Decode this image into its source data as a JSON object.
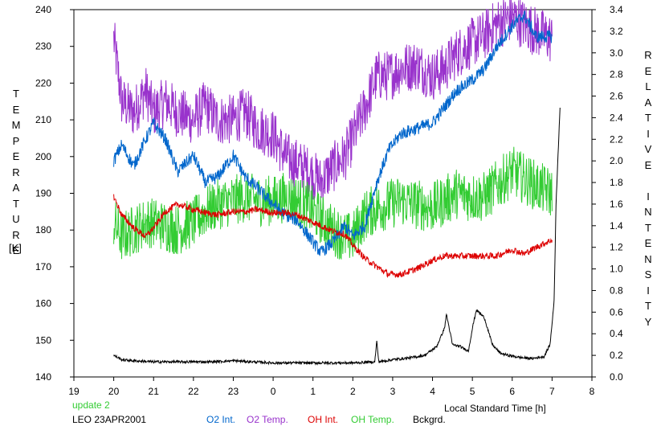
{
  "chart_data": {
    "type": "line",
    "left_axis": {
      "label": "TEMPERATURE",
      "unit": "[K]",
      "range": [
        140,
        240
      ],
      "ticks": [
        "140",
        "150",
        "160",
        "170",
        "180",
        "190",
        "200",
        "210",
        "220",
        "230",
        "240"
      ]
    },
    "right_axis": {
      "label": "RELATIVE INTENSITY",
      "range": [
        0.0,
        3.4
      ],
      "ticks": [
        "0.0",
        "0.2",
        "0.4",
        "0.6",
        "0.8",
        "1.0",
        "1.2",
        "1.4",
        "1.6",
        "1.8",
        "2.0",
        "2.2",
        "2.4",
        "2.6",
        "2.8",
        "3.0",
        "3.2",
        "3.4"
      ]
    },
    "x_axis": {
      "label": "Local Standard Time [h]",
      "ticks": [
        "19",
        "20",
        "21",
        "22",
        "23",
        "0",
        "1",
        "2",
        "3",
        "4",
        "5",
        "6",
        "7",
        "8"
      ]
    },
    "grid": false,
    "series": [
      {
        "name": "O2 Int.",
        "axis": "right",
        "color": "#0066cc",
        "noise": 0.06,
        "x": [
          20.0,
          20.2,
          20.5,
          20.8,
          21.0,
          21.3,
          21.6,
          22.0,
          22.3,
          22.6,
          23.0,
          23.3,
          23.6,
          0.0,
          0.3,
          0.6,
          0.9,
          1.2,
          1.5,
          1.8,
          2.0,
          2.3,
          2.6,
          2.9,
          3.2,
          3.6,
          4.0,
          4.3,
          4.6,
          5.0,
          5.3,
          5.6,
          6.0,
          6.3,
          6.6,
          7.0
        ],
        "y": [
          2.0,
          2.15,
          1.95,
          2.2,
          2.35,
          2.2,
          1.9,
          2.05,
          1.8,
          1.85,
          2.05,
          1.85,
          1.75,
          1.6,
          1.5,
          1.45,
          1.3,
          1.15,
          1.25,
          1.4,
          1.3,
          1.4,
          1.8,
          2.1,
          2.25,
          2.3,
          2.35,
          2.5,
          2.65,
          2.75,
          2.85,
          3.05,
          3.25,
          3.35,
          3.15,
          3.15
        ]
      },
      {
        "name": "O2 Temp.",
        "axis": "left",
        "color": "#9933cc",
        "noise": 7,
        "x": [
          20.0,
          20.2,
          20.5,
          20.8,
          21.0,
          21.3,
          21.6,
          22.0,
          22.3,
          22.6,
          23.0,
          23.3,
          23.6,
          0.0,
          0.3,
          0.6,
          0.9,
          1.2,
          1.5,
          1.8,
          2.0,
          2.3,
          2.6,
          2.9,
          3.2,
          3.6,
          4.0,
          4.3,
          4.6,
          5.0,
          5.3,
          5.6,
          6.0,
          6.3,
          6.6,
          7.0
        ],
        "y": [
          232,
          215,
          212,
          218,
          212,
          215,
          212,
          210,
          214,
          210,
          210,
          212,
          208,
          206,
          200,
          198,
          196,
          193,
          197,
          200,
          205,
          213,
          222,
          222,
          224,
          225,
          222,
          224,
          228,
          231,
          233,
          236,
          238,
          236,
          234,
          232
        ]
      },
      {
        "name": "OH Int.",
        "axis": "right",
        "color": "#dd0000",
        "noise": 0.03,
        "x": [
          20.0,
          20.2,
          20.5,
          20.8,
          21.0,
          21.3,
          21.6,
          22.0,
          22.3,
          22.6,
          23.0,
          23.3,
          23.6,
          0.0,
          0.3,
          0.6,
          0.9,
          1.2,
          1.5,
          1.8,
          2.0,
          2.3,
          2.6,
          2.9,
          3.2,
          3.6,
          4.0,
          4.3,
          4.6,
          5.0,
          5.3,
          5.6,
          6.0,
          6.3,
          6.6,
          7.0
        ],
        "y": [
          1.67,
          1.5,
          1.38,
          1.3,
          1.38,
          1.53,
          1.6,
          1.55,
          1.52,
          1.5,
          1.53,
          1.53,
          1.55,
          1.52,
          1.52,
          1.5,
          1.45,
          1.4,
          1.35,
          1.32,
          1.22,
          1.1,
          1.02,
          0.95,
          0.95,
          1.0,
          1.08,
          1.12,
          1.12,
          1.12,
          1.12,
          1.12,
          1.18,
          1.14,
          1.2,
          1.27
        ]
      },
      {
        "name": "OH Temp.",
        "axis": "left",
        "color": "#33cc33",
        "noise": 7,
        "x": [
          20.0,
          20.2,
          20.5,
          20.8,
          21.0,
          21.3,
          21.6,
          22.0,
          22.3,
          22.6,
          23.0,
          23.3,
          23.6,
          0.0,
          0.3,
          0.6,
          0.9,
          1.2,
          1.5,
          1.8,
          2.0,
          2.3,
          2.6,
          2.9,
          3.2,
          3.6,
          4.0,
          4.3,
          4.6,
          5.0,
          5.3,
          5.6,
          6.0,
          6.3,
          6.6,
          7.0
        ],
        "y": [
          182,
          178,
          180,
          182,
          182,
          181,
          180,
          182,
          185,
          187,
          188,
          189,
          188,
          188,
          189,
          188,
          186,
          183,
          180,
          178,
          178,
          184,
          186,
          187,
          188,
          187,
          186,
          188,
          190,
          189,
          189,
          192,
          196,
          194,
          192,
          190
        ]
      },
      {
        "name": "Bckgrd.",
        "axis": "right",
        "color": "#000000",
        "noise": 0.012,
        "x": [
          20.0,
          20.2,
          20.5,
          21.0,
          21.5,
          22.0,
          22.5,
          23.0,
          23.5,
          0.0,
          0.5,
          1.0,
          1.5,
          2.0,
          2.55,
          2.6,
          2.65,
          3.0,
          3.5,
          3.8,
          4.1,
          4.3,
          4.35,
          4.5,
          4.7,
          4.9,
          5.0,
          5.1,
          5.3,
          5.5,
          5.7,
          5.9,
          6.2,
          6.5,
          6.8,
          6.95,
          7.05,
          7.1,
          7.2
        ],
        "y": [
          0.2,
          0.16,
          0.15,
          0.14,
          0.14,
          0.14,
          0.14,
          0.15,
          0.14,
          0.13,
          0.13,
          0.13,
          0.13,
          0.13,
          0.14,
          0.33,
          0.14,
          0.16,
          0.18,
          0.2,
          0.28,
          0.45,
          0.58,
          0.3,
          0.28,
          0.24,
          0.45,
          0.62,
          0.55,
          0.3,
          0.22,
          0.2,
          0.18,
          0.17,
          0.19,
          0.3,
          0.7,
          1.6,
          2.5
        ]
      }
    ]
  },
  "footer": {
    "update": "update 2",
    "station": "LEO 23APR2001",
    "legend": [
      {
        "name": "O2 Int.",
        "color": "#0066cc"
      },
      {
        "name": "O2 Temp.",
        "color": "#9933cc"
      },
      {
        "name": "OH Int.",
        "color": "#dd0000"
      },
      {
        "name": "OH Temp.",
        "color": "#33cc33"
      },
      {
        "name": "Bckgrd.",
        "color": "#000000"
      }
    ]
  }
}
